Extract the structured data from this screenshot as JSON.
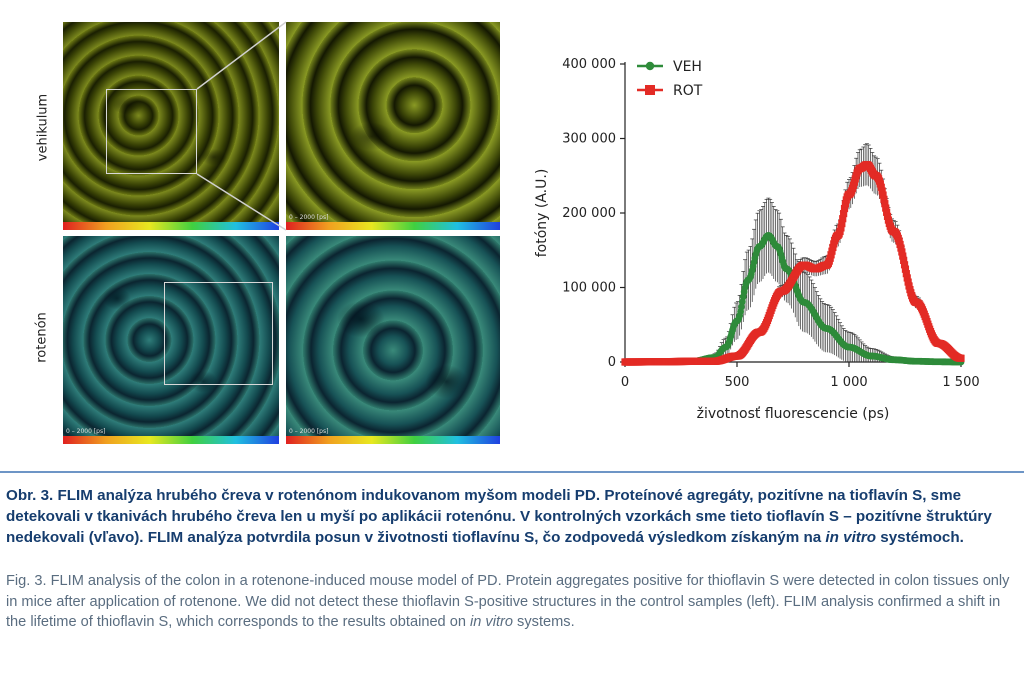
{
  "figure": {
    "row_labels": [
      "vehikulum",
      "rotenón"
    ],
    "scale_text": "0 – 2000 [ps]"
  },
  "chart_data": {
    "type": "line",
    "xlabel": "životnosť fluorescencie (ps)",
    "ylabel": "fotóny (A.U.)",
    "xlim": [
      0,
      1500
    ],
    "ylim": [
      0,
      400000
    ],
    "x_ticks": [
      0,
      500,
      1000,
      1500
    ],
    "x_tick_labels": [
      "0",
      "500",
      "1 000",
      "1 500"
    ],
    "y_ticks": [
      0,
      100000,
      200000,
      300000,
      400000
    ],
    "y_tick_labels": [
      "0",
      "100 000",
      "200 000",
      "300 000",
      "400 000"
    ],
    "legend_position": "top-left",
    "grid": false,
    "series": [
      {
        "name": "VEH",
        "color": "#2e8b3a",
        "marker": "circle",
        "x": [
          0,
          300,
          400,
          450,
          500,
          550,
          600,
          640,
          680,
          720,
          800,
          900,
          1000,
          1100,
          1200,
          1300,
          1400,
          1500
        ],
        "y": [
          0,
          1000,
          6000,
          20000,
          55000,
          110000,
          155000,
          170000,
          155000,
          125000,
          80000,
          45000,
          20000,
          8000,
          3000,
          1000,
          300,
          0
        ],
        "error": [
          0,
          0,
          5000,
          12000,
          25000,
          40000,
          48000,
          50000,
          48000,
          45000,
          40000,
          32000,
          20000,
          10000,
          4000,
          1500,
          0,
          0
        ]
      },
      {
        "name": "ROT",
        "color": "#e32b25",
        "marker": "square",
        "x": [
          0,
          400,
          500,
          600,
          700,
          800,
          850,
          900,
          950,
          1000,
          1050,
          1080,
          1120,
          1200,
          1300,
          1400,
          1500
        ],
        "y": [
          0,
          1000,
          8000,
          40000,
          95000,
          130000,
          125000,
          130000,
          170000,
          225000,
          260000,
          265000,
          250000,
          175000,
          80000,
          25000,
          5000
        ],
        "error": [
          0,
          0,
          2000,
          5000,
          8000,
          10000,
          10000,
          12000,
          15000,
          20000,
          25000,
          28000,
          25000,
          15000,
          8000,
          4000,
          1000
        ]
      }
    ]
  },
  "caption": {
    "sk_main": "Obr. 3. FLIM analýza hrubého čreva v rotenónom indukovanom myšom modeli PD. Proteínové agregáty, pozitívne na tioflavín S, sme detekovali v tkanivách hrubého čreva len u myší po aplikácii rotenónu. V kontrolných vzorkách sme tieto tioflavín S – pozitívne štruktúry nedekovali (vľavo). FLIM analýza potvrdila posun v životnosti tioflavínu S, čo zodpovedá výsledkom získaným na ",
    "sk_italic": "in vitro",
    "sk_end": " systémoch.",
    "en_main": "Fig. 3. FLIM analysis of the colon in a rotenone-induced mouse model of PD. Protein aggregates positive for thioflavin S were detected in colon tissues only in mice after application of rotenone. We did not detect these thioflavin S-positive structures in the control samples (left). FLIM analysis confirmed a shift in the lifetime of thioflavin S, which corresponds to the results obtained on ",
    "en_italic": "in vitro",
    "en_end": " systems."
  }
}
